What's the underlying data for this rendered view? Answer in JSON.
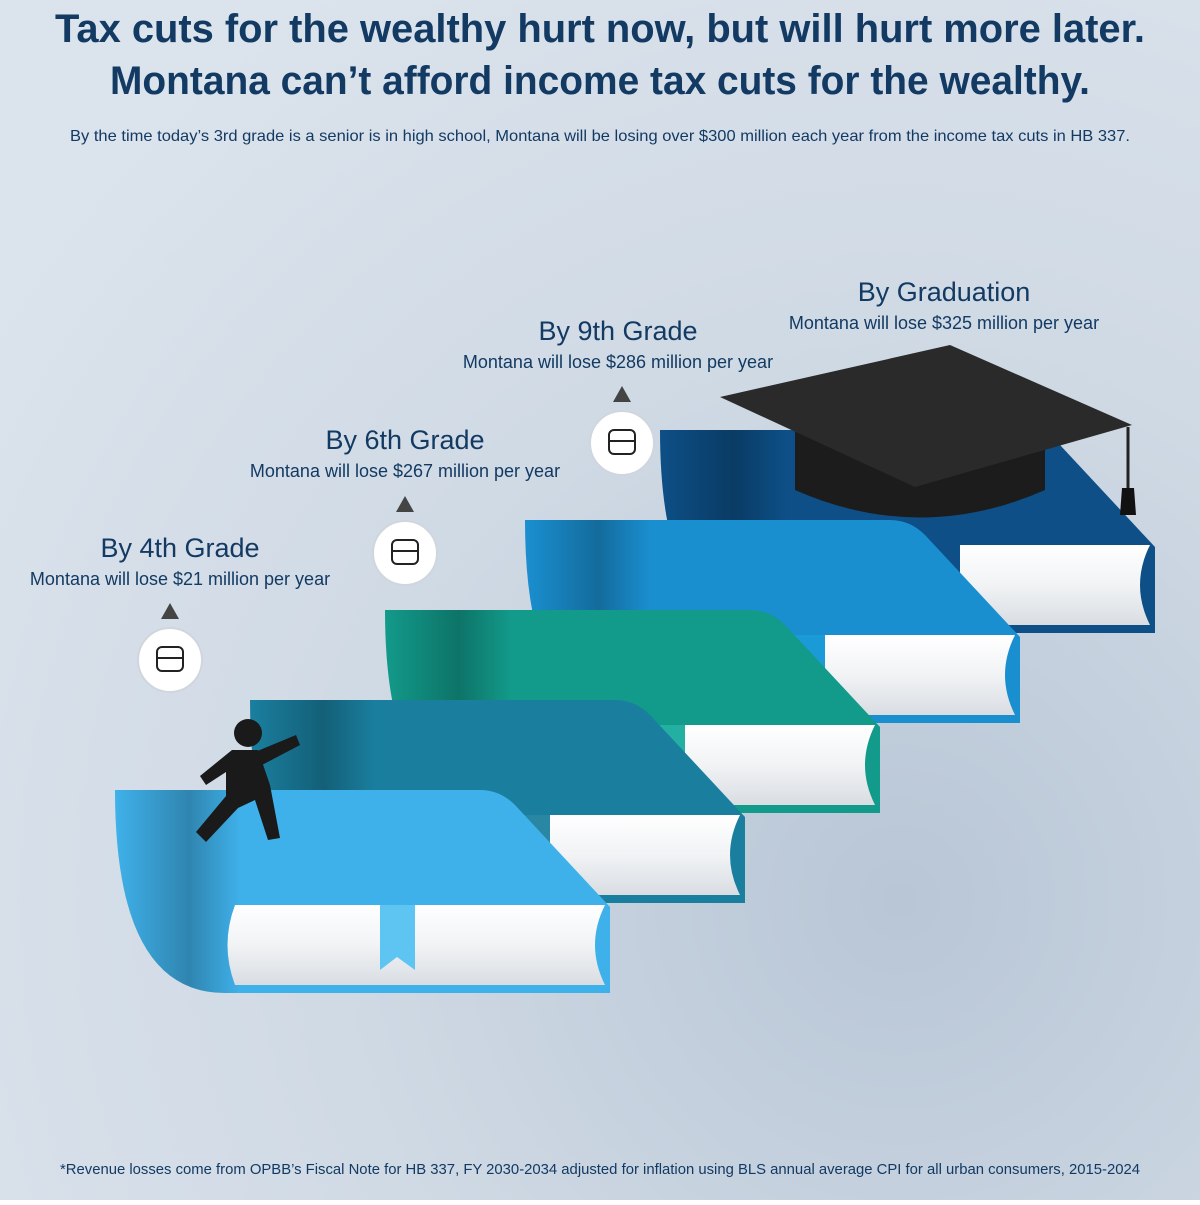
{
  "header": {
    "title_lines": [
      "Tax cuts for the wealthy hurt now, but will hurt more later.",
      "Montana can’t afford income tax cuts for the wealthy."
    ],
    "subtitle": "By the time today’s 3rd grade is a senior is in high school, Montana will be losing over $300 million each year from the income tax cuts in HB 337."
  },
  "steps": [
    {
      "heading": "By 4th Grade",
      "text": "Montana will lose $21 million per year"
    },
    {
      "heading": "By 6th Grade",
      "text": "Montana will lose $267 million per year"
    },
    {
      "heading": "By 9th Grade",
      "text": "Montana will lose $286 million per year"
    },
    {
      "heading": "By Graduation",
      "text": "Montana will lose $325 million per year"
    }
  ],
  "footnote": "*Revenue losses come from OPBB’s Fiscal Note for HB 337, FY 2030-2034 adjusted for inflation using BLS annual average CPI for all urban consumers, 2015-2024"
}
